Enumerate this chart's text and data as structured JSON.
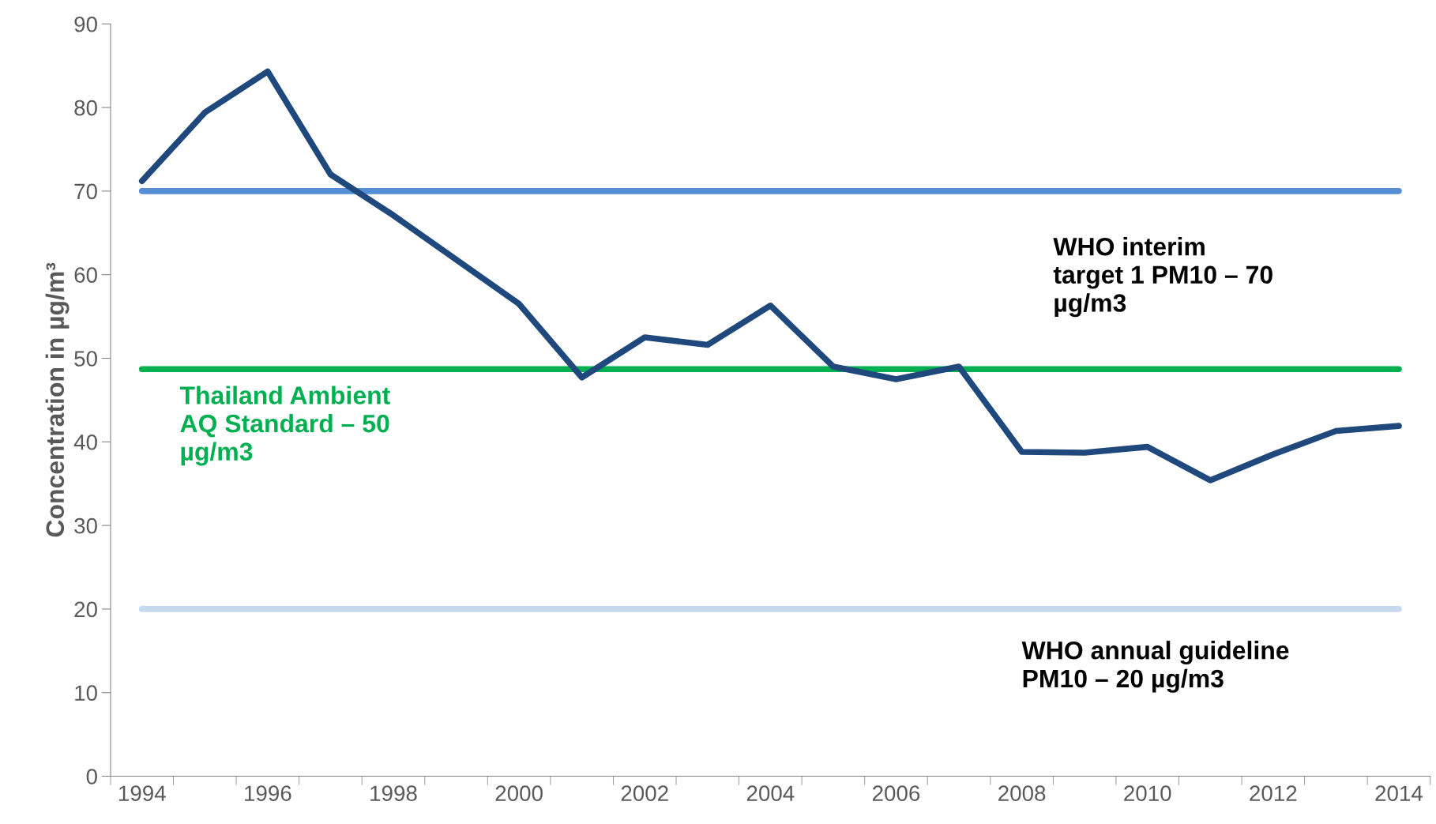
{
  "chart_data": {
    "type": "line",
    "ylabel": "Concentration in µg/m³",
    "categories": [
      "1994",
      null,
      "1996",
      null,
      "1998",
      null,
      "2000",
      null,
      "2002",
      null,
      "2004",
      null,
      "2006",
      null,
      "2008",
      null,
      "2010",
      null,
      "2012",
      null,
      "2014"
    ],
    "series": [
      {
        "color": "#1f497d",
        "values": [
          71.2,
          79.4,
          84.3,
          72.0,
          67.1,
          61.8,
          56.5,
          47.7,
          52.5,
          51.6,
          56.3,
          49.0,
          47.5,
          49.0,
          38.8,
          38.7,
          39.4,
          35.4,
          38.5,
          41.3,
          41.9
        ]
      }
    ],
    "ylim": [
      0,
      90
    ],
    "yticks": [
      0,
      10,
      20,
      30,
      40,
      50,
      60,
      70,
      80,
      90
    ],
    "ref_lines": [
      {
        "axis": "y",
        "value": 70,
        "label": "WHO interim\ntarget 1 PM10 – 70\nµg/m3",
        "color": "#558ed5"
      },
      {
        "axis": "y",
        "value": 48.7,
        "label": "Thailand Ambient\nAQ Standard – 50\nµg/m3",
        "color": "#00b050"
      },
      {
        "axis": "y",
        "value": 20,
        "label": "WHO annual guideline\nPM10 – 20 µg/m3",
        "color": "#c6d9f1"
      }
    ],
    "grid": false,
    "legend": false,
    "marker": "none",
    "line_style": "solid"
  }
}
